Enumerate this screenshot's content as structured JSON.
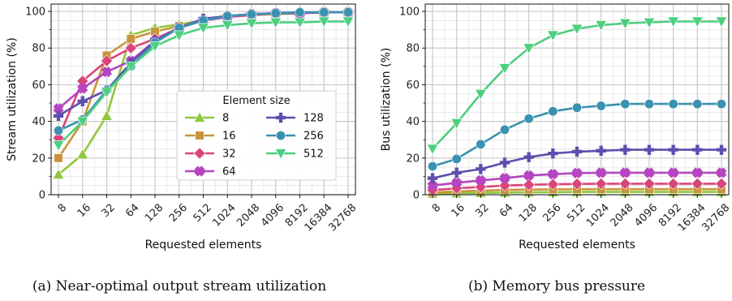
{
  "chart_data": [
    {
      "type": "line",
      "caption": "(a) Near-optimal output stream utilization",
      "xlabel": "Requested elements",
      "ylabel": "Stream utilization (%)",
      "ylim": [
        0,
        100
      ],
      "yticks": [
        "0",
        "20",
        "40",
        "60",
        "80",
        "100"
      ],
      "categories": [
        "8",
        "16",
        "32",
        "64",
        "128",
        "256",
        "512",
        "1024",
        "2048",
        "4096",
        "8192",
        "16384",
        "32768"
      ],
      "grid": true,
      "legend": {
        "title": "Element size",
        "placement": "lower-right",
        "columns": 2
      },
      "series": [
        {
          "name": "8",
          "color": "#8fc73e",
          "marker": "triangle-up",
          "values": [
            11,
            22,
            43,
            87,
            91,
            93,
            95,
            97,
            98,
            98.5,
            99,
            99.5,
            99.5
          ]
        },
        {
          "name": "16",
          "color": "#c9943c",
          "marker": "square",
          "values": [
            20,
            40,
            76,
            85,
            89,
            92,
            95,
            97,
            98,
            99,
            99,
            99.5,
            99.5
          ]
        },
        {
          "name": "32",
          "color": "#d9457a",
          "marker": "diamond",
          "values": [
            31,
            62,
            73,
            80,
            85,
            91,
            95,
            97,
            98,
            99,
            99,
            99.5,
            99.5
          ]
        },
        {
          "name": "64",
          "color": "#b545c0",
          "marker": "plus-filled",
          "values": [
            47,
            58,
            67,
            73,
            84,
            91,
            95,
            97,
            98.5,
            99,
            99,
            99.5,
            99.5
          ]
        },
        {
          "name": "128",
          "color": "#5d4fae",
          "marker": "plus",
          "values": [
            43,
            51,
            57,
            72,
            84,
            91,
            96,
            97.5,
            98.5,
            99,
            99.5,
            99.5,
            99.5
          ]
        },
        {
          "name": "256",
          "color": "#3a92b0",
          "marker": "circle",
          "values": [
            35,
            41,
            57,
            70,
            83,
            91,
            95,
            97.5,
            98.5,
            99,
            99.5,
            99.5,
            99.5
          ]
        },
        {
          "name": "512",
          "color": "#4ccf7e",
          "marker": "triangle-down",
          "values": [
            27,
            40,
            56,
            70,
            81,
            87,
            91,
            92.5,
            93.5,
            94,
            94,
            94.5,
            94.5
          ]
        }
      ]
    },
    {
      "type": "line",
      "caption": "(b) Memory bus pressure",
      "xlabel": "Requested elements",
      "ylabel": "Bus utilization (%)",
      "ylim": [
        0,
        100
      ],
      "yticks": [
        "0",
        "20",
        "40",
        "60",
        "80",
        "100"
      ],
      "categories": [
        "8",
        "16",
        "32",
        "64",
        "128",
        "256",
        "512",
        "1024",
        "2048",
        "4096",
        "8192",
        "16384",
        "32768"
      ],
      "grid": true,
      "series": [
        {
          "name": "8",
          "color": "#8fc73e",
          "marker": "triangle-up",
          "values": [
            0.5,
            0.8,
            1.0,
            1.2,
            1.3,
            1.4,
            1.5,
            1.5,
            1.5,
            1.5,
            1.5,
            1.5,
            1.5
          ]
        },
        {
          "name": "16",
          "color": "#c9943c",
          "marker": "square",
          "values": [
            1.2,
            1.8,
            2.2,
            2.6,
            2.8,
            2.9,
            3.0,
            3.0,
            3.0,
            3.0,
            3.0,
            3.0,
            3.0
          ]
        },
        {
          "name": "32",
          "color": "#d9457a",
          "marker": "diamond",
          "values": [
            2.5,
            3.5,
            4.2,
            5.0,
            5.4,
            5.7,
            5.9,
            6.0,
            6.0,
            6.0,
            6.0,
            6.0,
            6.0
          ]
        },
        {
          "name": "64",
          "color": "#b545c0",
          "marker": "plus-filled",
          "values": [
            5,
            6.5,
            7.8,
            9,
            10.5,
            11.2,
            11.8,
            12,
            12,
            12,
            12,
            12,
            12
          ]
        },
        {
          "name": "128",
          "color": "#5d4fae",
          "marker": "plus",
          "values": [
            9,
            12,
            14,
            17.5,
            20.5,
            22.5,
            23.5,
            24,
            24.5,
            24.5,
            24.5,
            24.5,
            24.5
          ]
        },
        {
          "name": "256",
          "color": "#3a92b0",
          "marker": "circle",
          "values": [
            15.5,
            19.5,
            27.5,
            35.5,
            41.5,
            45.5,
            47.5,
            48.5,
            49.5,
            49.5,
            49.5,
            49.5,
            49.5
          ]
        },
        {
          "name": "512",
          "color": "#4ccf7e",
          "marker": "triangle-down",
          "values": [
            25,
            39,
            55,
            69,
            80,
            87,
            90.5,
            92.5,
            93.5,
            94,
            94.5,
            94.5,
            94.5
          ]
        }
      ]
    }
  ]
}
